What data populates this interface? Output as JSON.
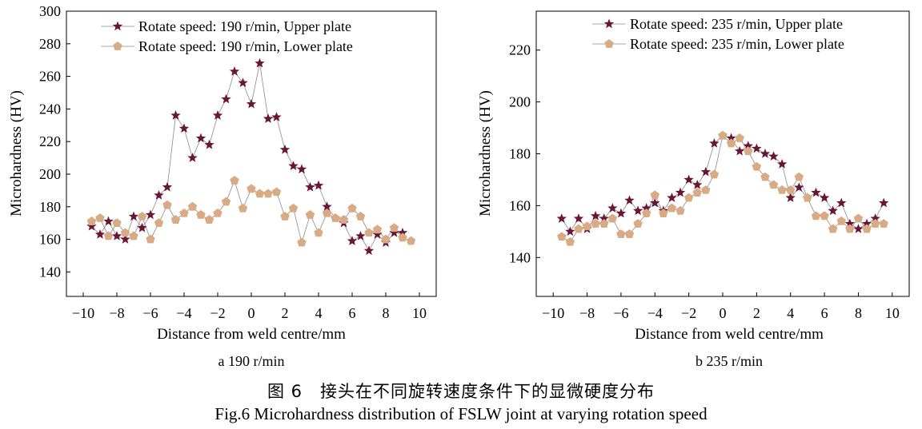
{
  "figure": {
    "caption_cn": "图 6　接头在不同旋转速度条件下的显微硬度分布",
    "caption_en": "Fig.6 Microhardness distribution of FSLW joint at varying rotation speed"
  },
  "colors": {
    "upper": "#6b1535",
    "lower": "#d8ab85",
    "line": "#8a8a8a",
    "axis": "#000000"
  },
  "chart_data": [
    {
      "type": "line",
      "subcaption": "a  190 r/min",
      "xlabel": "Distance from weld centre/mm",
      "ylabel": "Microhardness (HV)",
      "xlim": [
        -11,
        11
      ],
      "ylim": [
        125,
        300
      ],
      "xticks": [
        -10,
        -8,
        -6,
        -4,
        -2,
        0,
        2,
        4,
        6,
        8,
        10
      ],
      "xtick_labels": [
        "−10",
        "−8",
        "−6",
        "−4",
        "−2",
        "0",
        "2",
        "4",
        "6",
        "8",
        "10"
      ],
      "yticks": [
        140,
        160,
        180,
        200,
        220,
        240,
        260,
        280,
        300
      ],
      "ytick_labels": [
        "140",
        "160",
        "180",
        "200",
        "220",
        "240",
        "260",
        "280",
        "300"
      ],
      "legend_position": "top-left",
      "series": [
        {
          "name": "Rotate speed: 190 r/min, Upper plate",
          "marker": "star",
          "x": [
            -9.5,
            -9,
            -8.5,
            -8,
            -7.5,
            -7,
            -6.5,
            -6,
            -5.5,
            -5,
            -4.5,
            -4,
            -3.5,
            -3,
            -2.5,
            -2,
            -1.5,
            -1,
            -0.5,
            0,
            0.5,
            1,
            1.5,
            2,
            2.5,
            3,
            3.5,
            4,
            4.5,
            5,
            5.5,
            6,
            6.5,
            7,
            7.5,
            8,
            8.5,
            9
          ],
          "values": [
            168,
            163,
            171,
            162,
            160,
            174,
            167,
            175,
            187,
            192,
            236,
            228,
            210,
            222,
            218,
            236,
            246,
            263,
            256,
            243,
            268,
            234,
            235,
            215,
            205,
            203,
            192,
            193,
            180,
            173,
            170,
            159,
            162,
            153,
            163,
            158,
            164,
            164
          ]
        },
        {
          "name": "Rotate speed: 190 r/min, Lower plate",
          "marker": "pentagon",
          "x": [
            -9.5,
            -9,
            -8.5,
            -8,
            -7.5,
            -7,
            -6.5,
            -6,
            -5.5,
            -5,
            -4.5,
            -4,
            -3.5,
            -3,
            -2.5,
            -2,
            -1.5,
            -1,
            -0.5,
            0,
            0.5,
            1,
            1.5,
            2,
            2.5,
            3,
            3.5,
            4,
            4.5,
            5,
            5.5,
            6,
            6.5,
            7,
            7.5,
            8,
            8.5,
            9,
            9.5
          ],
          "values": [
            171,
            173,
            162,
            170,
            164,
            162,
            174,
            160,
            170,
            181,
            172,
            176,
            180,
            175,
            172,
            176,
            183,
            196,
            179,
            191,
            188,
            188,
            189,
            174,
            179,
            158,
            175,
            164,
            176,
            173,
            172,
            179,
            174,
            164,
            166,
            160,
            167,
            161,
            159
          ]
        }
      ]
    },
    {
      "type": "line",
      "subcaption": "b  235 r/min",
      "xlabel": "Distance from weld centre/mm",
      "ylabel": "Microhardness (HV)",
      "xlim": [
        -11,
        11
      ],
      "ylim": [
        125,
        235
      ],
      "xticks": [
        -10,
        -8,
        -6,
        -4,
        -2,
        0,
        2,
        4,
        6,
        8,
        10
      ],
      "xtick_labels": [
        "−10",
        "−8",
        "−6",
        "−4",
        "−2",
        "0",
        "2",
        "4",
        "6",
        "8",
        "10"
      ],
      "yticks": [
        140,
        160,
        180,
        200,
        220
      ],
      "ytick_labels": [
        "140",
        "160",
        "180",
        "200",
        "220"
      ],
      "legend_position": "top-left",
      "series": [
        {
          "name": "Rotate speed: 235 r/min, Upper plate",
          "marker": "star",
          "x": [
            -9.5,
            -9,
            -8.5,
            -8,
            -7.5,
            -7,
            -6.5,
            -6,
            -5.5,
            -5,
            -4.5,
            -4,
            -3.5,
            -3,
            -2.5,
            -2,
            -1.5,
            -1,
            -0.5,
            0,
            0.5,
            1,
            1.5,
            2,
            2.5,
            3,
            3.5,
            4,
            4.5,
            5,
            5.5,
            6,
            6.5,
            7,
            7.5,
            8,
            8.5,
            9,
            9.5
          ],
          "values": [
            155,
            150,
            155,
            151,
            156,
            155,
            159,
            157,
            162,
            158,
            159,
            161,
            158,
            163,
            165,
            170,
            168,
            173,
            184,
            187,
            186,
            181,
            183,
            182,
            180,
            179,
            176,
            163,
            167,
            163,
            165,
            163,
            158,
            161,
            153,
            151,
            153,
            155,
            161
          ]
        },
        {
          "name": "Rotate speed: 235 r/min, Lower plate",
          "marker": "pentagon",
          "x": [
            -9.5,
            -9,
            -8.5,
            -8,
            -7.5,
            -7,
            -6.5,
            -6,
            -5.5,
            -5,
            -4.5,
            -4,
            -3.5,
            -3,
            -2.5,
            -2,
            -1.5,
            -1,
            -0.5,
            0,
            0.5,
            1,
            1.5,
            2,
            2.5,
            3,
            3.5,
            4,
            4.5,
            5,
            5.5,
            6,
            6.5,
            7,
            7.5,
            8,
            8.5,
            9,
            9.5
          ],
          "values": [
            148,
            146,
            151,
            152,
            153,
            153,
            155,
            149,
            149,
            153,
            157,
            164,
            157,
            159,
            158,
            163,
            165,
            166,
            172,
            187,
            184,
            186,
            181,
            175,
            171,
            168,
            166,
            166,
            171,
            163,
            156,
            156,
            151,
            154,
            151,
            155,
            151,
            153,
            153
          ]
        }
      ]
    }
  ]
}
